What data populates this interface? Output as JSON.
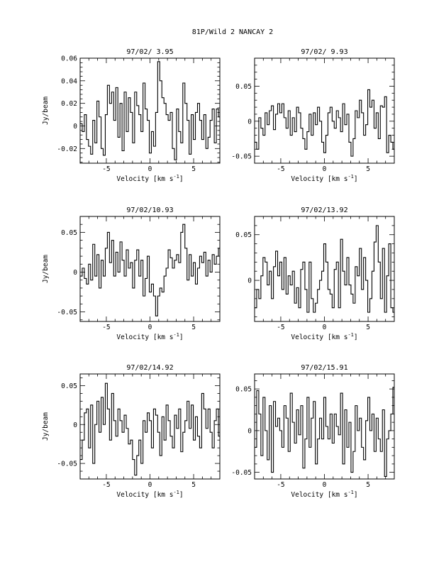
{
  "figure": {
    "title": "81P/Wild 2   NANCAY     2",
    "units": "km s",
    "units_exp": "-1"
  },
  "chart_data": [
    {
      "type": "line",
      "step": true,
      "title": "97/02/ 3.95",
      "xlabel": "Velocity [km s",
      "ylabel": "Jy/beam",
      "xlim": [
        -8,
        8
      ],
      "ylim": [
        -0.033,
        0.06
      ],
      "xticks": [
        -5,
        0,
        5
      ],
      "xtick_labels": [
        "-5",
        "0",
        "5"
      ],
      "yticks": [
        -0.02,
        0,
        0.02,
        0.04,
        0.06
      ],
      "ytick_labels": [
        "-0.02",
        "0",
        "0.02",
        "0.04",
        "0.06"
      ],
      "x": [
        -8,
        -7.76,
        -7.52,
        -7.28,
        -7.04,
        -6.8,
        -6.56,
        -6.32,
        -6.08,
        -5.84,
        -5.6,
        -5.36,
        -5.12,
        -4.88,
        -4.64,
        -4.4,
        -4.16,
        -3.92,
        -3.68,
        -3.44,
        -3.2,
        -2.96,
        -2.72,
        -2.48,
        -2.24,
        -2,
        -1.76,
        -1.52,
        -1.28,
        -1.04,
        -0.8,
        -0.56,
        -0.32,
        -0.08,
        0.16,
        0.4,
        0.64,
        0.88,
        1.12,
        1.36,
        1.6,
        1.84,
        2.08,
        2.32,
        2.56,
        2.8,
        3.04,
        3.28,
        3.52,
        3.76,
        4,
        4.24,
        4.48,
        4.72,
        4.96,
        5.2,
        5.44,
        5.68,
        5.92,
        6.16,
        6.4,
        6.64,
        6.88,
        7.12,
        7.36,
        7.6,
        7.84
      ],
      "values": [
        0.002,
        -0.005,
        0.01,
        -0.012,
        -0.018,
        -0.025,
        0.005,
        -0.015,
        0.022,
        0.008,
        -0.02,
        -0.026,
        0.01,
        0.036,
        0.02,
        0.03,
        0.005,
        0.034,
        -0.01,
        0.02,
        -0.022,
        0.03,
        -0.005,
        0.025,
        0.012,
        -0.015,
        0.03,
        0.018,
        0.01,
        -0.005,
        0.038,
        0.015,
        0.005,
        -0.024,
        -0.005,
        -0.018,
        0.012,
        0.057,
        0.04,
        0.025,
        0.02,
        0.01,
        0.005,
        0.012,
        -0.02,
        -0.03,
        0.015,
        -0.005,
        -0.015,
        0.038,
        0.02,
        0.005,
        -0.025,
        0.01,
        -0.012,
        0.012,
        0.02,
        0.005,
        -0.012,
        0.01,
        -0.02,
        -0.01,
        0.005,
        0.015,
        -0.015,
        0.015,
        0.008
      ]
    },
    {
      "type": "line",
      "step": true,
      "title": "97/02/ 9.93",
      "xlabel": "Velocity [km s",
      "ylabel": "",
      "xlim": [
        -8,
        8
      ],
      "ylim": [
        -0.06,
        0.09
      ],
      "xticks": [
        -5,
        0,
        5
      ],
      "xtick_labels": [
        "-5",
        "0",
        "5"
      ],
      "yticks": [
        -0.05,
        0,
        0.05
      ],
      "ytick_labels": [
        "-0.05",
        "0",
        "0.05"
      ],
      "x": [
        -8,
        -7.76,
        -7.52,
        -7.28,
        -7.04,
        -6.8,
        -6.56,
        -6.32,
        -6.08,
        -5.84,
        -5.6,
        -5.36,
        -5.12,
        -4.88,
        -4.64,
        -4.4,
        -4.16,
        -3.92,
        -3.68,
        -3.44,
        -3.2,
        -2.96,
        -2.72,
        -2.48,
        -2.24,
        -2,
        -1.76,
        -1.52,
        -1.28,
        -1.04,
        -0.8,
        -0.56,
        -0.32,
        -0.08,
        0.16,
        0.4,
        0.64,
        0.88,
        1.12,
        1.36,
        1.6,
        1.84,
        2.08,
        2.32,
        2.56,
        2.8,
        3.04,
        3.28,
        3.52,
        3.76,
        4,
        4.24,
        4.48,
        4.72,
        4.96,
        5.2,
        5.44,
        5.68,
        5.92,
        6.16,
        6.4,
        6.64,
        6.88,
        7.12,
        7.36,
        7.6,
        7.84
      ],
      "values": [
        -0.03,
        -0.04,
        0.005,
        -0.01,
        -0.02,
        0.012,
        -0.005,
        0.015,
        0.022,
        -0.012,
        0.01,
        0.025,
        0.012,
        0.025,
        0.005,
        -0.01,
        0.015,
        -0.02,
        0.005,
        -0.015,
        0.02,
        0.012,
        -0.01,
        -0.025,
        -0.04,
        -0.015,
        0.01,
        -0.02,
        0.012,
        -0.005,
        0.02,
        0.0,
        -0.03,
        -0.045,
        -0.02,
        0.012,
        0.02,
        0.0,
        -0.01,
        0.015,
        0.005,
        -0.015,
        0.025,
        -0.005,
        0.01,
        -0.03,
        -0.05,
        -0.025,
        0.015,
        0.005,
        0.03,
        0.012,
        -0.02,
        -0.005,
        0.045,
        0.02,
        0.03,
        -0.01,
        0.012,
        -0.025,
        0.022,
        0.02,
        0.035,
        -0.045,
        -0.02,
        -0.03,
        -0.04
      ]
    },
    {
      "type": "line",
      "step": true,
      "title": "97/02/10.93",
      "xlabel": "Velocity [km s",
      "ylabel": "Jy/beam",
      "xlim": [
        -8,
        8
      ],
      "ylim": [
        -0.062,
        0.07
      ],
      "xticks": [
        -5,
        0,
        5
      ],
      "xtick_labels": [
        "-5",
        "0",
        "5"
      ],
      "yticks": [
        -0.05,
        0,
        0.05
      ],
      "ytick_labels": [
        "-0.05",
        "0",
        "0.05"
      ],
      "x": [
        -8,
        -7.76,
        -7.52,
        -7.28,
        -7.04,
        -6.8,
        -6.56,
        -6.32,
        -6.08,
        -5.84,
        -5.6,
        -5.36,
        -5.12,
        -4.88,
        -4.64,
        -4.4,
        -4.16,
        -3.92,
        -3.68,
        -3.44,
        -3.2,
        -2.96,
        -2.72,
        -2.48,
        -2.24,
        -2,
        -1.76,
        -1.52,
        -1.28,
        -1.04,
        -0.8,
        -0.56,
        -0.32,
        -0.08,
        0.16,
        0.4,
        0.64,
        0.88,
        1.12,
        1.36,
        1.6,
        1.84,
        2.08,
        2.32,
        2.56,
        2.8,
        3.04,
        3.28,
        3.52,
        3.76,
        4,
        4.24,
        4.48,
        4.72,
        4.96,
        5.2,
        5.44,
        5.68,
        5.92,
        6.16,
        6.4,
        6.64,
        6.88,
        7.12,
        7.36,
        7.6,
        7.84
      ],
      "values": [
        -0.005,
        0.005,
        -0.008,
        -0.015,
        0.01,
        -0.01,
        0.035,
        -0.005,
        0.022,
        -0.02,
        0.015,
        -0.005,
        0.03,
        0.05,
        0.012,
        0.04,
        -0.005,
        0.025,
        0.0,
        0.038,
        0.015,
        -0.005,
        0.028,
        0.005,
        0.012,
        -0.02,
        0.015,
        0.028,
        -0.005,
        0.015,
        -0.03,
        -0.008,
        0.02,
        -0.025,
        -0.015,
        -0.03,
        -0.055,
        -0.03,
        -0.02,
        -0.025,
        -0.005,
        0.005,
        0.028,
        0.018,
        0.005,
        0.015,
        0.022,
        0.012,
        0.05,
        0.06,
        0.03,
        -0.01,
        0.022,
        -0.005,
        0.012,
        -0.015,
        0.005,
        0.02,
        0.012,
        0.025,
        -0.005,
        0.015,
        0.0,
        0.022,
        0.01,
        0.02,
        0.03
      ]
    },
    {
      "type": "line",
      "step": true,
      "title": "97/02/13.92",
      "xlabel": "Velocity [km s",
      "ylabel": "",
      "xlim": [
        -8,
        8
      ],
      "ylim": [
        -0.045,
        0.07
      ],
      "xticks": [
        -5,
        0,
        5
      ],
      "xtick_labels": [
        "-5",
        "0",
        "5"
      ],
      "yticks": [
        0,
        0.05
      ],
      "ytick_labels": [
        "0",
        "0.05"
      ],
      "x": [
        -8,
        -7.76,
        -7.52,
        -7.28,
        -7.04,
        -6.8,
        -6.56,
        -6.32,
        -6.08,
        -5.84,
        -5.6,
        -5.36,
        -5.12,
        -4.88,
        -4.64,
        -4.4,
        -4.16,
        -3.92,
        -3.68,
        -3.44,
        -3.2,
        -2.96,
        -2.72,
        -2.48,
        -2.24,
        -2,
        -1.76,
        -1.52,
        -1.28,
        -1.04,
        -0.8,
        -0.56,
        -0.32,
        -0.08,
        0.16,
        0.4,
        0.64,
        0.88,
        1.12,
        1.36,
        1.6,
        1.84,
        2.08,
        2.32,
        2.56,
        2.8,
        3.04,
        3.28,
        3.52,
        3.76,
        4,
        4.24,
        4.48,
        4.72,
        4.96,
        5.2,
        5.44,
        5.68,
        5.92,
        6.16,
        6.4,
        6.64,
        6.88,
        7.12,
        7.36,
        7.6,
        7.84
      ],
      "values": [
        -0.03,
        -0.01,
        -0.02,
        0.005,
        0.025,
        0.02,
        -0.005,
        0.01,
        -0.02,
        0.015,
        0.032,
        0.005,
        0.02,
        -0.01,
        0.025,
        -0.015,
        0.005,
        -0.005,
        0.01,
        -0.025,
        -0.008,
        -0.03,
        0.012,
        0.02,
        -0.01,
        -0.035,
        0.02,
        -0.02,
        -0.035,
        -0.025,
        -0.01,
        0.0,
        0.01,
        0.04,
        0.02,
        -0.01,
        -0.015,
        -0.03,
        0.012,
        0.02,
        -0.03,
        0.045,
        0.01,
        -0.005,
        0.025,
        -0.005,
        -0.015,
        -0.025,
        0.015,
        0.005,
        0.035,
        -0.01,
        0.025,
        0.0,
        -0.035,
        -0.02,
        0.01,
        0.042,
        0.06,
        0.02,
        -0.02,
        0.035,
        -0.035,
        0.005,
        0.04,
        -0.03,
        -0.035
      ]
    },
    {
      "type": "line",
      "step": true,
      "title": "97/02/14.92",
      "xlabel": "Velocity [km s",
      "ylabel": "Jy/beam",
      "xlim": [
        -8,
        8
      ],
      "ylim": [
        -0.07,
        0.065
      ],
      "xticks": [
        -5,
        0,
        5
      ],
      "xtick_labels": [
        "-5",
        "0",
        "5"
      ],
      "yticks": [
        -0.05,
        0,
        0.05
      ],
      "ytick_labels": [
        "-0.05",
        "0",
        "0.05"
      ],
      "x": [
        -8,
        -7.76,
        -7.52,
        -7.28,
        -7.04,
        -6.8,
        -6.56,
        -6.32,
        -6.08,
        -5.84,
        -5.6,
        -5.36,
        -5.12,
        -4.88,
        -4.64,
        -4.4,
        -4.16,
        -3.92,
        -3.68,
        -3.44,
        -3.2,
        -2.96,
        -2.72,
        -2.48,
        -2.24,
        -2,
        -1.76,
        -1.52,
        -1.28,
        -1.04,
        -0.8,
        -0.56,
        -0.32,
        -0.08,
        0.16,
        0.4,
        0.64,
        0.88,
        1.12,
        1.36,
        1.6,
        1.84,
        2.08,
        2.32,
        2.56,
        2.8,
        3.04,
        3.28,
        3.52,
        3.76,
        4,
        4.24,
        4.48,
        4.72,
        4.96,
        5.2,
        5.44,
        5.68,
        5.92,
        6.16,
        6.4,
        6.64,
        6.88,
        7.12,
        7.36,
        7.6,
        7.84
      ],
      "values": [
        -0.045,
        -0.02,
        0.015,
        0.02,
        -0.03,
        0.025,
        -0.05,
        0.0,
        0.03,
        -0.01,
        0.035,
        0.0,
        0.053,
        0.02,
        -0.02,
        0.04,
        0.005,
        -0.015,
        0.02,
        0.005,
        -0.01,
        0.012,
        -0.005,
        -0.025,
        -0.02,
        -0.045,
        -0.065,
        -0.04,
        -0.02,
        -0.05,
        0.005,
        -0.01,
        0.015,
        0.005,
        -0.03,
        0.02,
        0.012,
        -0.01,
        -0.04,
        0.01,
        -0.02,
        0.025,
        0.005,
        -0.015,
        -0.03,
        0.012,
        -0.005,
        0.02,
        -0.035,
        -0.01,
        0.005,
        0.03,
        -0.005,
        0.025,
        -0.02,
        0.01,
        -0.015,
        -0.03,
        0.04,
        0.02,
        -0.005,
        0.02,
        -0.01,
        -0.03,
        0.005,
        0.02,
        -0.015
      ]
    },
    {
      "type": "line",
      "step": true,
      "title": "97/02/15.91",
      "xlabel": "Velocity [km s",
      "ylabel": "",
      "xlim": [
        -8,
        8
      ],
      "ylim": [
        -0.058,
        0.068
      ],
      "xticks": [
        -5,
        0,
        5
      ],
      "xtick_labels": [
        "-5",
        "0",
        "5"
      ],
      "yticks": [
        -0.05,
        0,
        0.05
      ],
      "ytick_labels": [
        "-0.05",
        "0",
        "0.05"
      ],
      "x": [
        -8,
        -7.76,
        -7.52,
        -7.28,
        -7.04,
        -6.8,
        -6.56,
        -6.32,
        -6.08,
        -5.84,
        -5.6,
        -5.36,
        -5.12,
        -4.88,
        -4.64,
        -4.4,
        -4.16,
        -3.92,
        -3.68,
        -3.44,
        -3.2,
        -2.96,
        -2.72,
        -2.48,
        -2.24,
        -2,
        -1.76,
        -1.52,
        -1.28,
        -1.04,
        -0.8,
        -0.56,
        -0.32,
        -0.08,
        0.16,
        0.4,
        0.64,
        0.88,
        1.12,
        1.36,
        1.6,
        1.84,
        2.08,
        2.32,
        2.56,
        2.8,
        3.04,
        3.28,
        3.52,
        3.76,
        4,
        4.24,
        4.48,
        4.72,
        4.96,
        5.2,
        5.44,
        5.68,
        5.92,
        6.16,
        6.4,
        6.64,
        6.88,
        7.12,
        7.36,
        7.6,
        7.84
      ],
      "values": [
        -0.02,
        0.048,
        0.02,
        -0.03,
        0.04,
        0.0,
        -0.035,
        0.03,
        -0.05,
        0.035,
        0.005,
        0.015,
        0.0,
        -0.02,
        0.03,
        0.015,
        -0.025,
        0.045,
        0.01,
        -0.015,
        0.025,
        -0.005,
        0.03,
        -0.045,
        -0.01,
        0.04,
        -0.02,
        0.015,
        0.035,
        -0.04,
        -0.01,
        0.015,
        -0.01,
        0.04,
        0.005,
        -0.01,
        0.02,
        -0.015,
        0.02,
        0.005,
        -0.005,
        0.045,
        -0.04,
        0.025,
        -0.02,
        0.01,
        -0.05,
        -0.025,
        0.03,
        0.0,
        0.015,
        -0.02,
        -0.035,
        0.012,
        0.04,
        0.0,
        0.02,
        -0.025,
        0.015,
        -0.01,
        -0.025,
        0.025,
        -0.055,
        -0.01,
        0.0,
        0.02,
        0.052
      ]
    }
  ]
}
